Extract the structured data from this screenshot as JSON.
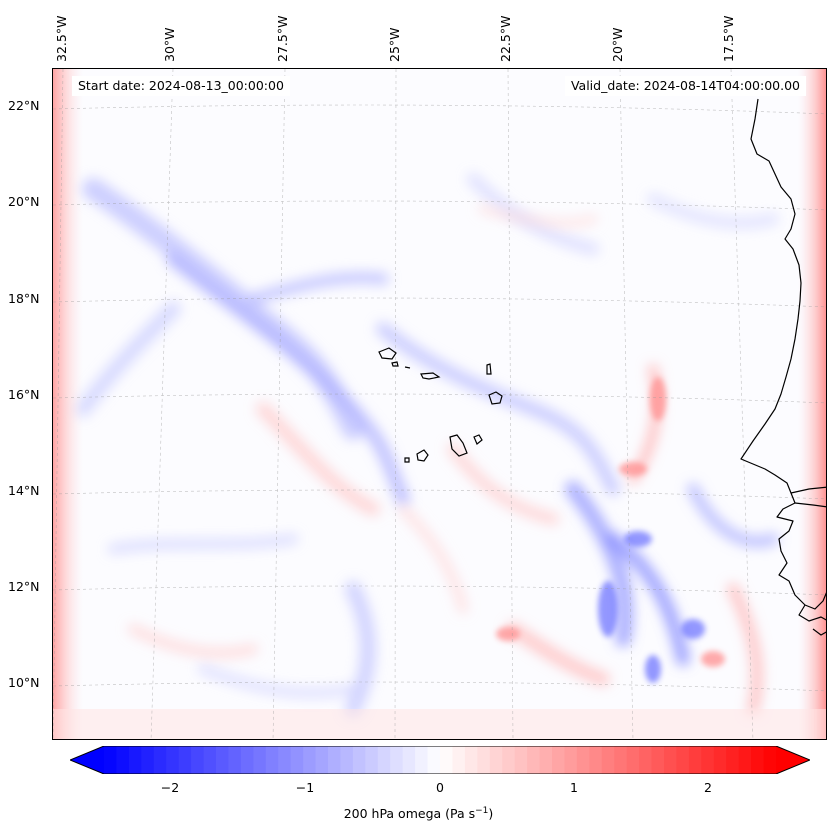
{
  "map": {
    "start_date_label": "Start date: 2024-08-13_00:00:00",
    "valid_date_label": "Valid_date: 2024-08-14T04:00:00.00",
    "longitude_labels": [
      "32.5°W",
      "30°W",
      "27.5°W",
      "25°W",
      "22.5°W",
      "20°W",
      "17.5°W"
    ],
    "latitude_labels": [
      "22°N",
      "20°N",
      "18°N",
      "16°N",
      "14°N",
      "12°N",
      "10°N"
    ],
    "variable_label": "200 hPa omega (Pa s",
    "variable_unit_exponent": "−1",
    "variable_label_end": ")",
    "colorbar": {
      "min": -2.7,
      "max": 2.7,
      "ticks": [
        "−2",
        "−1",
        "0",
        "1",
        "2"
      ],
      "tick_values": [
        -2,
        -1,
        0,
        1,
        2
      ],
      "negative_color": "#0000ff",
      "zero_color": "#ffffff",
      "positive_color": "#ff0000"
    },
    "islands": [
      "Santo Antão",
      "São Vicente",
      "São Nicolau",
      "Sal",
      "Boa Vista",
      "Santiago",
      "Fogo",
      "Brava",
      "Maio"
    ],
    "coastline": "West Africa (Senegal, Gambia, Guinea-Bissau)"
  }
}
